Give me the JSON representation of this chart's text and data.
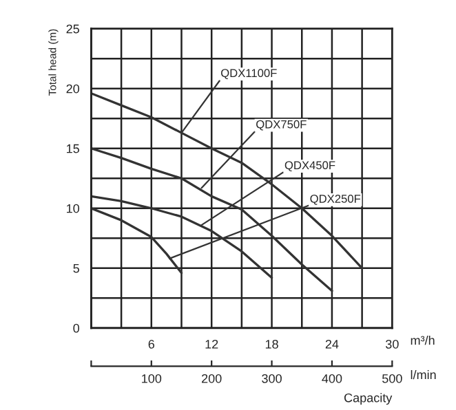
{
  "chart_data": {
    "type": "line",
    "ylabel": "Total head (m)",
    "xlabel": "m³/h",
    "x2label": "Capacity",
    "annotations": [
      {
        "text": "QDX1100F",
        "x": 9,
        "y": 16.3
      },
      {
        "text": "QDX750F",
        "x": 11,
        "y": 11.7
      },
      {
        "text": "QDX450F",
        "x": 11,
        "y": 8.6
      },
      {
        "text": "QDX250F",
        "x": 7.8,
        "y": 5.8
      },
      "l/min"
    ],
    "series": [
      {
        "color": "#333333",
        "x": [
          0,
          3,
          6,
          9,
          12,
          15,
          18,
          21,
          24,
          27
        ],
        "values": [
          19.6,
          18.6,
          17.6,
          16.3,
          15.0,
          13.8,
          12.0,
          10.0,
          7.7,
          5.0
        ]
      },
      {
        "color": "#333333",
        "x": [
          0,
          3,
          6,
          9,
          12,
          15,
          18,
          21,
          24
        ],
        "values": [
          15.0,
          14.2,
          13.3,
          12.5,
          11.0,
          9.9,
          7.7,
          5.3,
          3.1
        ]
      },
      {
        "color": "#333333",
        "x": [
          0,
          3,
          6,
          9,
          12,
          15,
          18
        ],
        "values": [
          11.0,
          10.6,
          10.0,
          9.3,
          8.1,
          6.4,
          4.2
        ]
      },
      {
        "color": "#333333",
        "x": [
          0,
          3,
          6,
          7.5,
          9
        ],
        "values": [
          10.0,
          9.0,
          7.6,
          6.2,
          4.6
        ]
      }
    ],
    "xlim": [
      0,
      30
    ],
    "ylim": [
      0,
      25
    ],
    "xticks": [
      {
        "value": 0,
        "label": null
      },
      {
        "value": 3,
        "label": null
      },
      6,
      {
        "value": 9,
        "label": null
      },
      12,
      {
        "value": 15,
        "label": null
      },
      18,
      {
        "value": 21,
        "label": null
      },
      24,
      {
        "value": 27,
        "label": null
      },
      30
    ],
    "yticks": [
      0,
      {
        "value": 2.5,
        "label": null
      },
      5,
      {
        "value": 7.5,
        "label": null
      },
      10,
      {
        "value": 12.5,
        "label": null
      },
      15,
      {
        "value": 17.5,
        "label": null
      },
      20,
      {
        "value": 22.5,
        "label": null
      },
      25
    ],
    "x2lim": [
      0,
      500
    ],
    "x2ticks": [
      {
        "value": 0,
        "label": null
      },
      100,
      200,
      300,
      400,
      500
    ],
    "grid": true,
    "marker": "none",
    "line_style": "solid"
  }
}
